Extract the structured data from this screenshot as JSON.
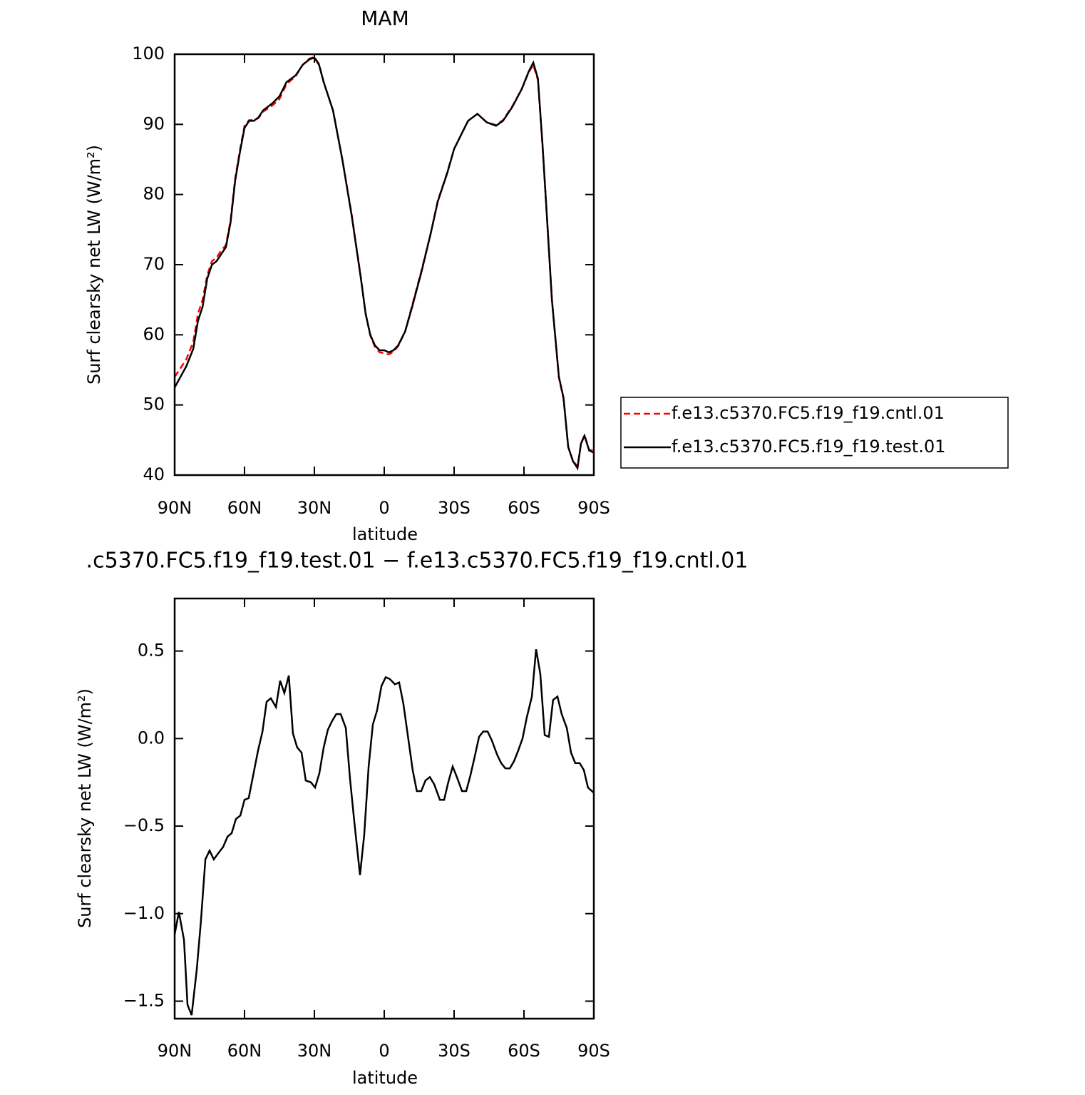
{
  "chart_data": [
    {
      "type": "line",
      "title": "MAM",
      "xlabel": "latitude",
      "ylabel": "Surf clearsky net LW (W/m²)",
      "xlim": [
        90,
        -90
      ],
      "ylim": [
        40,
        100
      ],
      "xticks": [
        {
          "value": 90,
          "label": "90N"
        },
        {
          "value": 60,
          "label": "60N"
        },
        {
          "value": 30,
          "label": "30N"
        },
        0,
        {
          "value": -30,
          "label": "30S"
        },
        {
          "value": -60,
          "label": "60S"
        },
        {
          "value": -90,
          "label": "90S"
        }
      ],
      "yticks": [
        40,
        50,
        60,
        70,
        80,
        90,
        100
      ],
      "legend": "right",
      "x": [
        90,
        85,
        82,
        80,
        78,
        76,
        74,
        72,
        70,
        68,
        66,
        64,
        62,
        60,
        58,
        56,
        54,
        52,
        48,
        45,
        42,
        38,
        35,
        32,
        30,
        28,
        26,
        22,
        18,
        14,
        10,
        8,
        6,
        4,
        2,
        0,
        -2,
        -4,
        -6,
        -9,
        -12,
        -16,
        -20,
        -23,
        -27,
        -30,
        -33,
        -36,
        -40,
        -44,
        -48,
        -51,
        -55,
        -59,
        -62,
        -64,
        -66,
        -68,
        -70,
        -72,
        -75,
        -77,
        -79,
        -81,
        -83,
        -84.5,
        -86,
        -88,
        -90
      ],
      "series": [
        {
          "name": "f.e13.c5370.FC5.f19_f19.cntl.01",
          "color": "#ff0000",
          "line_style": "dashed",
          "values": [
            54,
            56.5,
            59,
            63,
            65,
            68.5,
            70.5,
            71,
            72,
            72.8,
            76.3,
            82.3,
            86.3,
            89.8,
            90.6,
            90.6,
            90.9,
            91.8,
            92.7,
            93.6,
            95.7,
            96.9,
            98.5,
            99.4,
            99.6,
            98.6,
            96,
            92,
            85,
            77.2,
            68.1,
            63,
            59.9,
            58.3,
            57.5,
            57.4,
            57.2,
            57.6,
            58.4,
            60.5,
            64.2,
            69.2,
            74.5,
            79.1,
            83.1,
            86.5,
            88.5,
            90.5,
            91.5,
            90.3,
            89.9,
            90.6,
            92.6,
            95,
            97.4,
            98.5,
            96.3,
            86.8,
            76,
            65,
            53.9,
            50.9,
            44,
            42.1,
            41.2,
            44.5,
            45.7,
            43.6,
            43.5
          ]
        },
        {
          "name": "f.e13.c5370.FC5.f19_f19.test.01",
          "color": "#000000",
          "line_style": "solid",
          "values": [
            52.5,
            55.5,
            58,
            62,
            64,
            68,
            70,
            70.5,
            71.5,
            72.5,
            76,
            82,
            86,
            89.5,
            90.5,
            90.5,
            91,
            92,
            93,
            94,
            96,
            97,
            98.5,
            99.3,
            99.5,
            98.5,
            96,
            92,
            85,
            77,
            68,
            63,
            60,
            58.5,
            57.8,
            57.8,
            57.5,
            57.8,
            58.5,
            60.5,
            64,
            69,
            74.5,
            79,
            83,
            86.5,
            88.5,
            90.5,
            91.5,
            90.3,
            89.8,
            90.5,
            92.5,
            95,
            97.5,
            98.8,
            96.5,
            87,
            76,
            65,
            54,
            51,
            44,
            42,
            41,
            44.5,
            45.6,
            43.5,
            43.2
          ]
        }
      ]
    },
    {
      "type": "line",
      "title": ".c5370.FC5.f19_f19.test.01 − f.e13.c5370.FC5.f19_f19.cntl.01",
      "xlabel": "latitude",
      "ylabel": "Surf clearsky net LW (W/m²)",
      "xlim": [
        90,
        -90
      ],
      "ylim": [
        -1.6,
        0.8
      ],
      "xticks": [
        {
          "value": 90,
          "label": "90N"
        },
        {
          "value": 60,
          "label": "60N"
        },
        {
          "value": 30,
          "label": "30N"
        },
        0,
        {
          "value": -30,
          "label": "30S"
        },
        {
          "value": -60,
          "label": "60S"
        },
        {
          "value": -90,
          "label": "90S"
        }
      ],
      "yticks": [
        {
          "value": -1.5,
          "label": "−1.5"
        },
        {
          "value": -1,
          "label": "−1.0"
        },
        {
          "value": -0.5,
          "label": "−0.5"
        },
        {
          "value": 0,
          "label": "0.0"
        },
        0.5
      ],
      "color": "#000000",
      "x": [
        90,
        88.2,
        86,
        84.5,
        82.7,
        80.5,
        78.7,
        76.8,
        75,
        73.2,
        71,
        69.2,
        67.3,
        65.5,
        63.7,
        61.8,
        60,
        58.2,
        56,
        54.2,
        52.3,
        50.5,
        48.7,
        46.5,
        44.7,
        42.9,
        41,
        39.2,
        37.4,
        35.5,
        33.7,
        31.5,
        29.7,
        27.9,
        26,
        24.2,
        22.4,
        20.6,
        18.7,
        16.5,
        14.7,
        12.9,
        10.4,
        8.6,
        6.7,
        4.9,
        3.1,
        1.2,
        -0.6,
        -2.4,
        -4.6,
        -6.4,
        -8.2,
        -10.1,
        -12.2,
        -14,
        -15.9,
        -17.7,
        -19.6,
        -21.4,
        -23.9,
        -25.7,
        -27.5,
        -29.4,
        -31.2,
        -33.4,
        -35.2,
        -37,
        -38.9,
        -40.7,
        -42.5,
        -44.4,
        -46.2,
        -48.4,
        -50.2,
        -52,
        -53.9,
        -55.7,
        -57.5,
        -59.4,
        -61.2,
        -63.4,
        -65.2,
        -67,
        -68.9,
        -70.7,
        -72.5,
        -74.4,
        -76.2,
        -78.4,
        -80.2,
        -82,
        -83.9,
        -85.7,
        -87.5,
        -90
      ],
      "values": [
        -1.12,
        -0.99,
        -1.15,
        -1.52,
        -1.58,
        -1.32,
        -1.04,
        -0.69,
        -0.64,
        -0.69,
        -0.65,
        -0.62,
        -0.56,
        -0.54,
        -0.46,
        -0.44,
        -0.35,
        -0.34,
        -0.19,
        -0.07,
        0.04,
        0.21,
        0.23,
        0.18,
        0.33,
        0.26,
        0.36,
        0.03,
        -0.05,
        -0.08,
        -0.24,
        -0.25,
        -0.28,
        -0.2,
        -0.05,
        0.05,
        0.1,
        0.14,
        0.14,
        0.06,
        -0.23,
        -0.47,
        -0.78,
        -0.55,
        -0.16,
        0.08,
        0.16,
        0.3,
        0.35,
        0.34,
        0.31,
        0.32,
        0.2,
        0.02,
        -0.18,
        -0.3,
        -0.3,
        -0.24,
        -0.22,
        -0.26,
        -0.35,
        -0.35,
        -0.25,
        -0.16,
        -0.22,
        -0.3,
        -0.3,
        -0.21,
        -0.1,
        0.01,
        0.04,
        0.04,
        -0.01,
        -0.09,
        -0.14,
        -0.17,
        -0.17,
        -0.13,
        -0.07,
        0,
        0.12,
        0.24,
        0.51,
        0.37,
        0.02,
        0.01,
        0.22,
        0.24,
        0.14,
        0.06,
        -0.08,
        -0.14,
        -0.14,
        -0.18,
        -0.28,
        -0.31
      ]
    }
  ]
}
